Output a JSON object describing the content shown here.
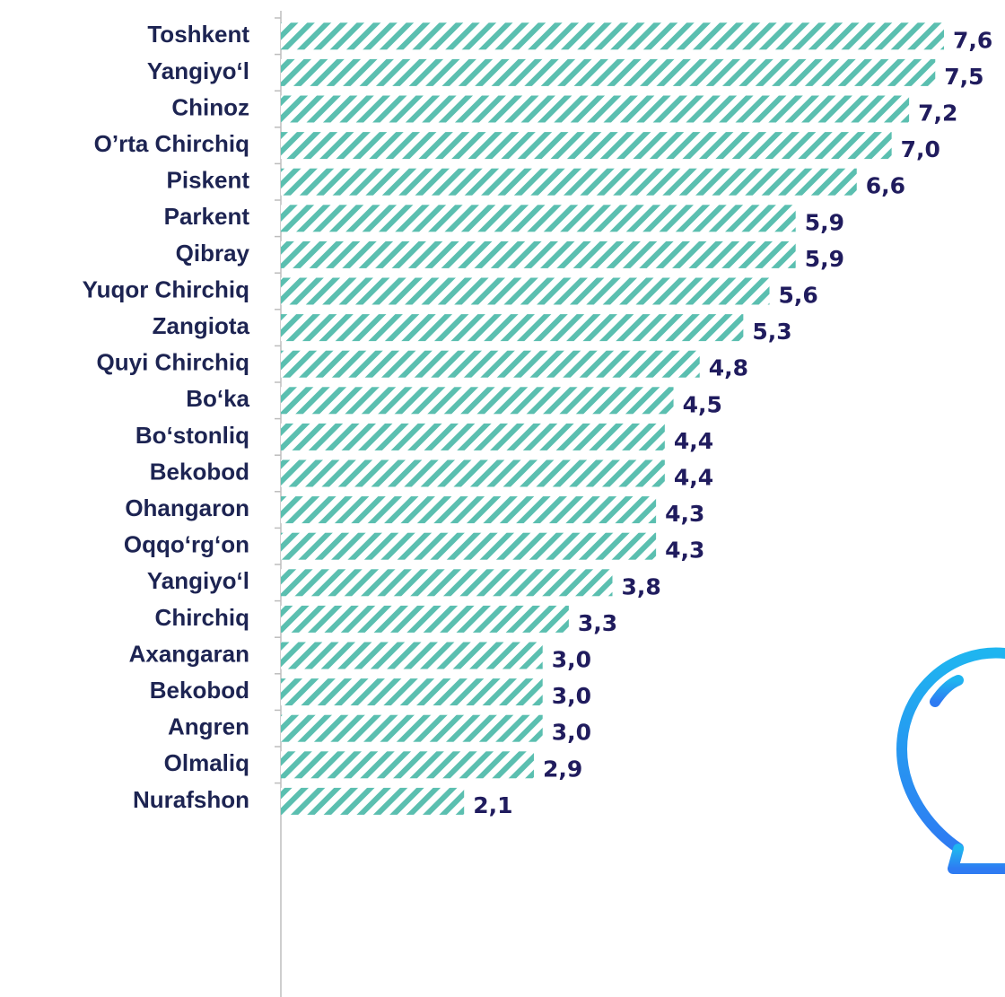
{
  "chart_data": {
    "type": "bar",
    "orientation": "horizontal",
    "categories": [
      "Toshkent",
      "Yangiyo‘l",
      "Chinoz",
      "O’rta Chirchiq",
      "Piskent",
      "Parkent",
      "Qibray",
      "Yuqor Chirchiq",
      "Zangiota",
      "Quyi Chirchiq",
      "Bo‘ka",
      "Bo‘stonliq",
      "Bekobod",
      "Ohangaron",
      "Oqqo‘rg‘on",
      "Yangiyo‘l",
      "Chirchiq",
      "Axangaran",
      "Bekobod",
      "Angren",
      "Olmaliq",
      "Nurafshon"
    ],
    "values": [
      7.6,
      7.5,
      7.2,
      7.0,
      6.6,
      5.9,
      5.9,
      5.6,
      5.3,
      4.8,
      4.5,
      4.4,
      4.4,
      4.3,
      4.3,
      3.8,
      3.3,
      3.0,
      3.0,
      3.0,
      2.9,
      2.1
    ],
    "value_labels": [
      "7,6",
      "7,5",
      "7,2",
      "7,0",
      "6,6",
      "5,9",
      "5,9",
      "5,6",
      "5,3",
      "4,8",
      "4,5",
      "4,4",
      "4,4",
      "4,3",
      "4,3",
      "3,8",
      "3,3",
      "3,0",
      "3,0",
      "3,0",
      "2,9",
      "2,1"
    ],
    "color": "#5bbfb0",
    "xlim": [
      0,
      7.6
    ]
  }
}
